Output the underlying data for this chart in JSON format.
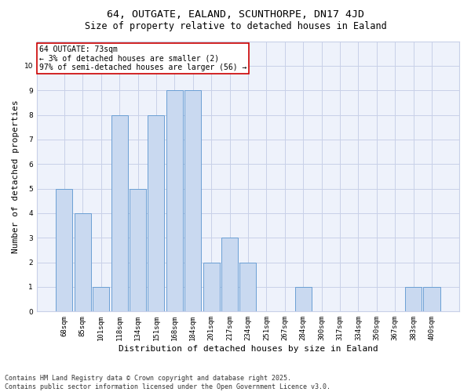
{
  "title": "64, OUTGATE, EALAND, SCUNTHORPE, DN17 4JD",
  "subtitle": "Size of property relative to detached houses in Ealand",
  "xlabel": "Distribution of detached houses by size in Ealand",
  "ylabel": "Number of detached properties",
  "categories": [
    "68sqm",
    "85sqm",
    "101sqm",
    "118sqm",
    "134sqm",
    "151sqm",
    "168sqm",
    "184sqm",
    "201sqm",
    "217sqm",
    "234sqm",
    "251sqm",
    "267sqm",
    "284sqm",
    "300sqm",
    "317sqm",
    "334sqm",
    "350sqm",
    "367sqm",
    "383sqm",
    "400sqm"
  ],
  "values": [
    5,
    4,
    1,
    8,
    5,
    8,
    9,
    9,
    2,
    3,
    2,
    0,
    0,
    1,
    0,
    0,
    0,
    0,
    0,
    1,
    1
  ],
  "bar_color": "#c9d9f0",
  "bar_edge_color": "#6b9fd4",
  "annotation_box_text": "64 OUTGATE: 73sqm\n← 3% of detached houses are smaller (2)\n97% of semi-detached houses are larger (56) →",
  "annotation_box_edge_color": "#cc0000",
  "ylim": [
    0,
    11
  ],
  "yticks": [
    0,
    1,
    2,
    3,
    4,
    5,
    6,
    7,
    8,
    9,
    10,
    11
  ],
  "bg_color": "#eef2fb",
  "grid_color": "#c8d0e8",
  "footer_text": "Contains HM Land Registry data © Crown copyright and database right 2025.\nContains public sector information licensed under the Open Government Licence v3.0.",
  "title_fontsize": 9.5,
  "subtitle_fontsize": 8.5,
  "ylabel_fontsize": 8,
  "xlabel_fontsize": 8,
  "tick_fontsize": 6.5,
  "annotation_fontsize": 7,
  "footer_fontsize": 6
}
